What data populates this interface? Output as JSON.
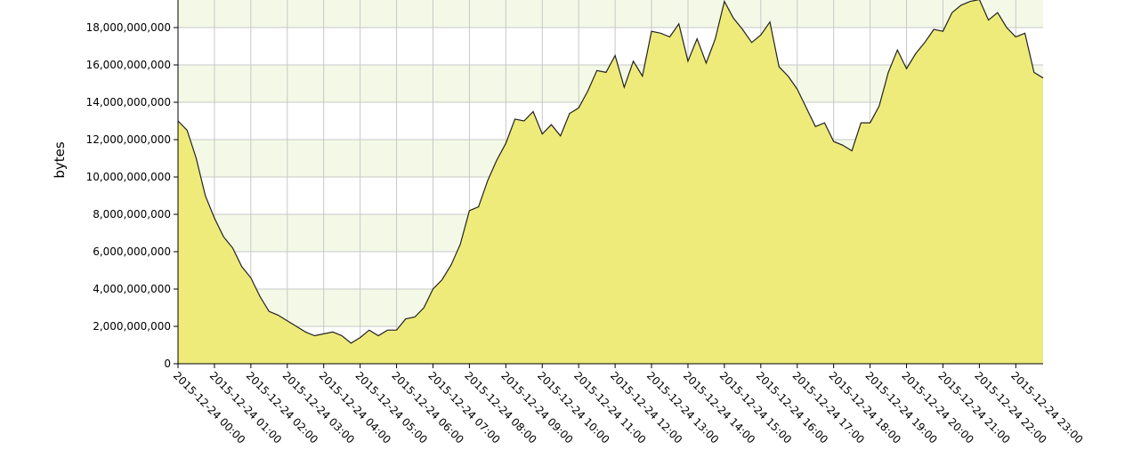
{
  "chart_data": {
    "type": "area",
    "y_label": "bytes",
    "color": "#eeeb7b",
    "grid": true,
    "x": [
      "2015-12-24 00:00",
      "2015-12-24 00:15",
      "2015-12-24 00:30",
      "2015-12-24 00:45",
      "2015-12-24 01:00",
      "2015-12-24 01:15",
      "2015-12-24 01:30",
      "2015-12-24 01:45",
      "2015-12-24 02:00",
      "2015-12-24 02:15",
      "2015-12-24 02:30",
      "2015-12-24 02:45",
      "2015-12-24 03:00",
      "2015-12-24 03:15",
      "2015-12-24 03:30",
      "2015-12-24 03:45",
      "2015-12-24 04:00",
      "2015-12-24 04:15",
      "2015-12-24 04:30",
      "2015-12-24 04:45",
      "2015-12-24 05:00",
      "2015-12-24 05:15",
      "2015-12-24 05:30",
      "2015-12-24 05:45",
      "2015-12-24 06:00",
      "2015-12-24 06:15",
      "2015-12-24 06:30",
      "2015-12-24 06:45",
      "2015-12-24 07:00",
      "2015-12-24 07:15",
      "2015-12-24 07:30",
      "2015-12-24 07:45",
      "2015-12-24 08:00",
      "2015-12-24 08:15",
      "2015-12-24 08:30",
      "2015-12-24 08:45",
      "2015-12-24 09:00",
      "2015-12-24 09:15",
      "2015-12-24 09:30",
      "2015-12-24 09:45",
      "2015-12-24 10:00",
      "2015-12-24 10:15",
      "2015-12-24 10:30",
      "2015-12-24 10:45",
      "2015-12-24 11:00",
      "2015-12-24 11:15",
      "2015-12-24 11:30",
      "2015-12-24 11:45",
      "2015-12-24 12:00",
      "2015-12-24 12:15",
      "2015-12-24 12:30",
      "2015-12-24 12:45",
      "2015-12-24 13:00",
      "2015-12-24 13:15",
      "2015-12-24 13:30",
      "2015-12-24 13:45",
      "2015-12-24 14:00",
      "2015-12-24 14:15",
      "2015-12-24 14:30",
      "2015-12-24 14:45",
      "2015-12-24 15:00",
      "2015-12-24 15:15",
      "2015-12-24 15:30",
      "2015-12-24 15:45",
      "2015-12-24 16:00",
      "2015-12-24 16:15",
      "2015-12-24 16:30",
      "2015-12-24 16:45",
      "2015-12-24 17:00",
      "2015-12-24 17:15",
      "2015-12-24 17:30",
      "2015-12-24 17:45",
      "2015-12-24 18:00",
      "2015-12-24 18:15",
      "2015-12-24 18:30",
      "2015-12-24 18:45",
      "2015-12-24 19:00",
      "2015-12-24 19:15",
      "2015-12-24 19:30",
      "2015-12-24 19:45",
      "2015-12-24 20:00",
      "2015-12-24 20:15",
      "2015-12-24 20:30",
      "2015-12-24 20:45",
      "2015-12-24 21:00",
      "2015-12-24 21:15",
      "2015-12-24 21:30",
      "2015-12-24 21:45",
      "2015-12-24 22:00",
      "2015-12-24 22:15",
      "2015-12-24 22:30",
      "2015-12-24 22:45",
      "2015-12-24 23:00",
      "2015-12-24 23:15",
      "2015-12-24 23:30",
      "2015-12-24 23:45"
    ],
    "values": [
      13000000000,
      12500000000,
      11000000000,
      9000000000,
      7800000000,
      6800000000,
      6200000000,
      5200000000,
      4600000000,
      3600000000,
      2800000000,
      2600000000,
      2300000000,
      2000000000,
      1700000000,
      1500000000,
      1600000000,
      1700000000,
      1500000000,
      1100000000,
      1400000000,
      1800000000,
      1500000000,
      1800000000,
      1800000000,
      2400000000,
      2500000000,
      3000000000,
      4000000000,
      4500000000,
      5300000000,
      6400000000,
      8200000000,
      8400000000,
      9800000000,
      10900000000,
      11800000000,
      13100000000,
      13000000000,
      13500000000,
      12300000000,
      12800000000,
      12200000000,
      13400000000,
      13700000000,
      14600000000,
      15700000000,
      15600000000,
      16500000000,
      14800000000,
      16200000000,
      15400000000,
      17800000000,
      17700000000,
      17500000000,
      18200000000,
      16200000000,
      17400000000,
      16100000000,
      17400000000,
      19400000000,
      18500000000,
      17900000000,
      17200000000,
      17600000000,
      18300000000,
      15900000000,
      15400000000,
      14700000000,
      13700000000,
      12700000000,
      12900000000,
      11900000000,
      11700000000,
      11400000000,
      12900000000,
      12900000000,
      13800000000,
      15600000000,
      16800000000,
      15800000000,
      16600000000,
      17200000000,
      17900000000,
      17800000000,
      18800000000,
      19200000000,
      19400000000,
      19500000000,
      18400000000,
      18800000000,
      18000000000,
      17500000000,
      17700000000,
      15600000000,
      15300000000
    ],
    "xlim": [
      "2015-12-24 00:00",
      "2015-12-24 23:45"
    ],
    "xticks": [
      "2015-12-24 00:00",
      "2015-12-24 01:00",
      "2015-12-24 02:00",
      "2015-12-24 03:00",
      "2015-12-24 04:00",
      "2015-12-24 05:00",
      "2015-12-24 06:00",
      "2015-12-24 07:00",
      "2015-12-24 08:00",
      "2015-12-24 09:00",
      "2015-12-24 10:00",
      "2015-12-24 11:00",
      "2015-12-24 12:00",
      "2015-12-24 13:00",
      "2015-12-24 14:00",
      "2015-12-24 15:00",
      "2015-12-24 16:00",
      "2015-12-24 17:00",
      "2015-12-24 18:00",
      "2015-12-24 19:00",
      "2015-12-24 20:00",
      "2015-12-24 21:00",
      "2015-12-24 22:00",
      "2015-12-24 23:00"
    ],
    "ylim": [
      0,
      19476000000
    ],
    "yticks": [
      0,
      {
        "value": 2000000000,
        "label": "2,000,000,000"
      },
      {
        "value": 4000000000,
        "label": "4,000,000,000"
      },
      {
        "value": 6000000000,
        "label": "6,000,000,000"
      },
      {
        "value": 8000000000,
        "label": "8,000,000,000"
      },
      {
        "value": 10000000000,
        "label": "10,000,000,000"
      },
      {
        "value": 12000000000,
        "label": "12,000,000,000"
      },
      {
        "value": 14000000000,
        "label": "14,000,000,000"
      },
      {
        "value": 16000000000,
        "label": "16,000,000,000"
      },
      {
        "value": 18000000000,
        "label": "18,000,000,000"
      }
    ]
  }
}
